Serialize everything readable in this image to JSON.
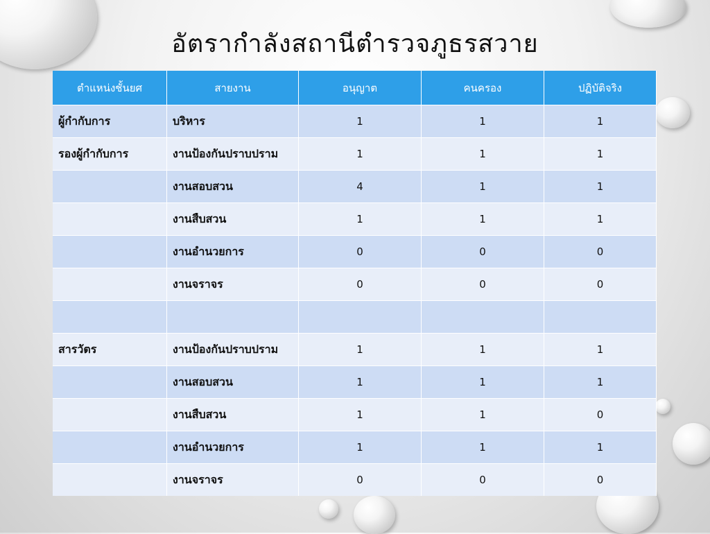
{
  "title": "อัตรากำลังสถานีตำรวจภูธรสวาย",
  "table": {
    "headers": [
      "ตำแหน่งชั้นยศ",
      "สายงาน",
      "อนุญาต",
      "คนครอง",
      "ปฏิบัติจริง"
    ],
    "rows": [
      [
        "ผู้กำกับการ",
        "บริหาร",
        "1",
        "1",
        "1"
      ],
      [
        "รองผู้กำกับการ",
        "งานป้องกันปราบปราม",
        "1",
        "1",
        "1"
      ],
      [
        "",
        "งานสอบสวน",
        "4",
        "1",
        "1"
      ],
      [
        "",
        "งานสืบสวน",
        "1",
        "1",
        "1"
      ],
      [
        "",
        "งานอำนวยการ",
        "0",
        "0",
        "0"
      ],
      [
        "",
        "งานจราจร",
        "0",
        "0",
        "0"
      ],
      [
        "",
        "",
        "",
        "",
        ""
      ],
      [
        "สารวัตร",
        "งานป้องกันปราบปราม",
        "1",
        "1",
        "1"
      ],
      [
        "",
        "งานสอบสวน",
        "1",
        "1",
        "1"
      ],
      [
        "",
        "งานสืบสวน",
        "1",
        "1",
        "0"
      ],
      [
        "",
        "งานอำนวยการ",
        "1",
        "1",
        "1"
      ],
      [
        "",
        "งานจราจร",
        "0",
        "0",
        "0"
      ]
    ]
  },
  "colors": {
    "header": "#2e9fe8",
    "row_dark": "#cddcf4",
    "row_light": "#e8eef9"
  }
}
